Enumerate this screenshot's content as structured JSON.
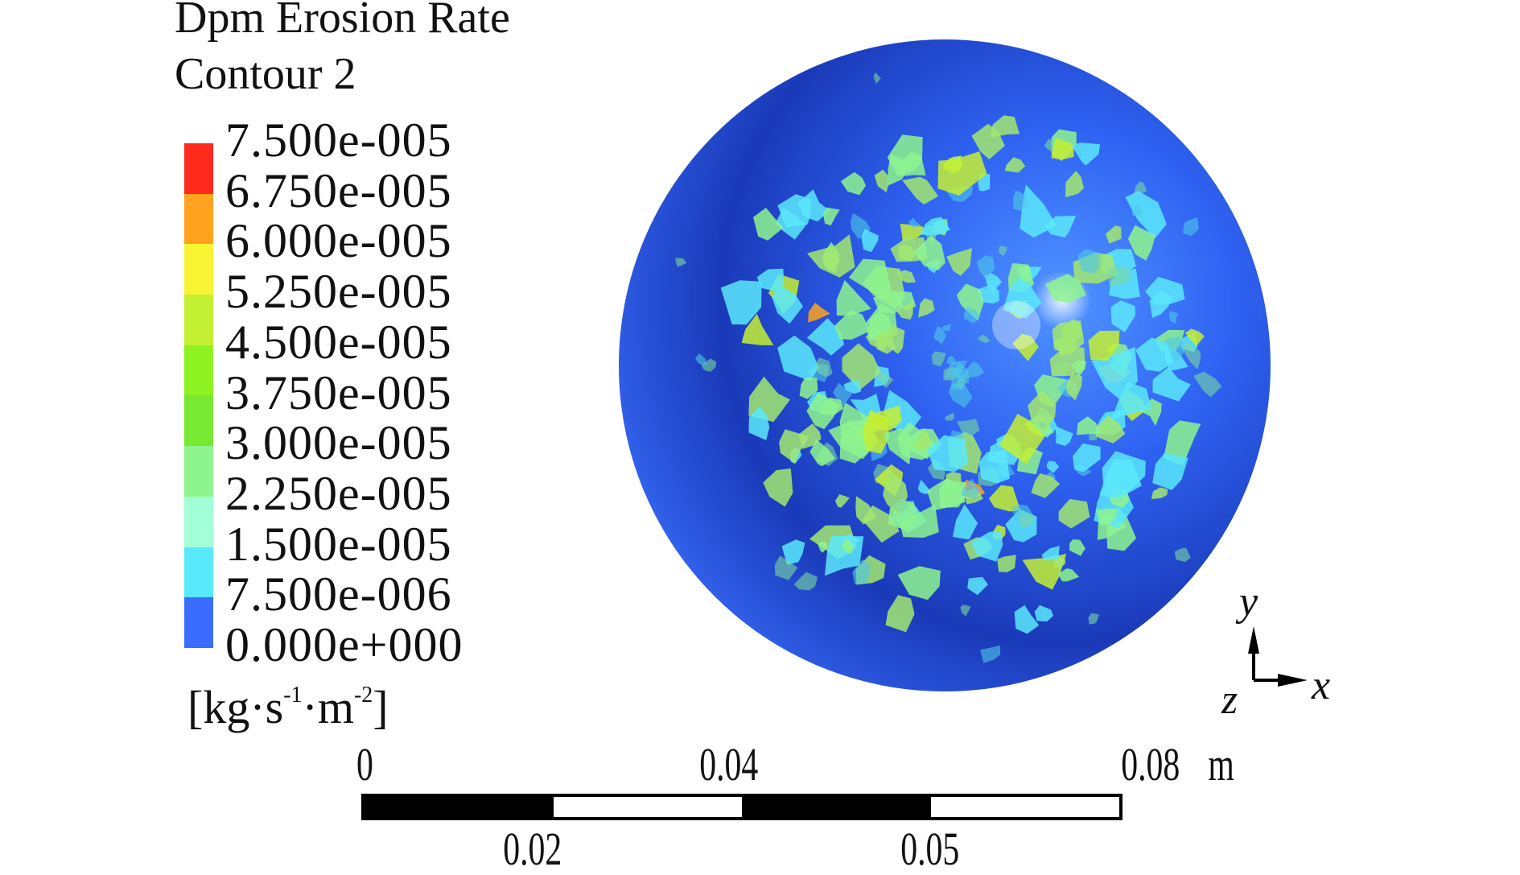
{
  "chart_data": {
    "type": "heatmap",
    "title": "Dpm Erosion Rate",
    "subtitle": "Contour 2",
    "colorbar": {
      "levels": [
        "7.500e-005",
        "6.750e-005",
        "6.000e-005",
        "5.250e-005",
        "4.500e-005",
        "3.750e-005",
        "3.000e-005",
        "2.250e-005",
        "1.500e-005",
        "7.500e-006",
        "0.000e+000"
      ],
      "colors": [
        "#ff2a1c",
        "#ffa21e",
        "#f8f434",
        "#c4f032",
        "#8ef222",
        "#78e832",
        "#8ef48e",
        "#a2ffd8",
        "#5ae8fc",
        "#3a6cff"
      ],
      "unit": "[kg·s⁻¹·m⁻²]",
      "unit_base": [
        "[kg·s",
        "·m",
        "]"
      ],
      "unit_exp": [
        "-1",
        "-2"
      ],
      "range": [
        0,
        7.5e-05
      ]
    },
    "scale_bar": {
      "top_labels": [
        "0",
        "0.04",
        "0.08"
      ],
      "bottom_labels": [
        "0.02",
        "0.05"
      ],
      "unit": "m",
      "range": [
        0,
        0.08
      ]
    },
    "axes": {
      "y": "y",
      "x": "x",
      "z": "z"
    },
    "surface_color": "#2f5ff0"
  }
}
